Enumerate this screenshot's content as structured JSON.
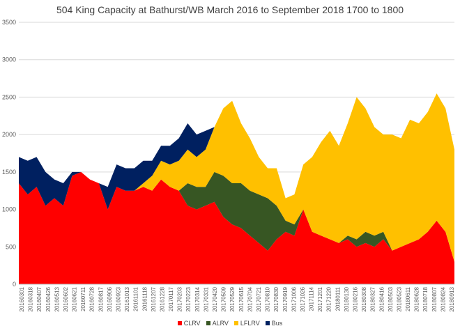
{
  "chart_data": {
    "type": "area",
    "stacked": true,
    "title": "504 King Capacity at Bathurst/WB March 2016 to September 2018  1700 to 1800",
    "xlabel": "",
    "ylabel": "",
    "ylim": [
      0,
      3500
    ],
    "yticks": [
      0,
      500,
      1000,
      1500,
      2000,
      2500,
      3000,
      3500
    ],
    "grid": true,
    "legend_position": "bottom",
    "x_tick_labels": [
      "20160301",
      "20160318",
      "20160407",
      "20160426",
      "20160513",
      "20160602",
      "20160621",
      "20160711",
      "20160728",
      "20160817",
      "20160906",
      "20160923",
      "20161013",
      "20161101",
      "20161118",
      "20161207",
      "20161228",
      "20170117",
      "20170203",
      "20170223",
      "20170314",
      "20170331",
      "20170420",
      "20170509",
      "20170529",
      "20170615",
      "20170704",
      "20170721",
      "20170810",
      "20170830",
      "20170919",
      "20171006",
      "20171026",
      "20171114",
      "20171201",
      "20171220",
      "20180111",
      "20180130",
      "20180216",
      "20180308",
      "20180327",
      "20180416",
      "20180503",
      "20180523",
      "20180611",
      "20180628",
      "20180718",
      "20180807",
      "20180824",
      "20180913"
    ],
    "series": [
      {
        "name": "CLRV",
        "color": "#ff0000",
        "values": [
          1350,
          1200,
          1300,
          1050,
          1150,
          1050,
          1450,
          1500,
          1400,
          1350,
          1000,
          1300,
          1250,
          1250,
          1300,
          1250,
          1400,
          1300,
          1250,
          1050,
          1000,
          1050,
          1100,
          900,
          800,
          750,
          650,
          550,
          450,
          600,
          700,
          650,
          1000,
          700,
          650,
          600,
          550,
          600,
          500,
          550,
          500,
          600,
          450,
          500,
          550,
          600,
          700,
          850,
          700,
          300
        ]
      },
      {
        "name": "ALRV",
        "color": "#375623",
        "values": [
          0,
          0,
          0,
          0,
          0,
          0,
          0,
          0,
          0,
          0,
          0,
          0,
          0,
          0,
          0,
          0,
          0,
          0,
          0,
          300,
          300,
          250,
          400,
          550,
          550,
          600,
          600,
          650,
          700,
          450,
          150,
          150,
          0,
          0,
          0,
          0,
          0,
          50,
          100,
          150,
          150,
          100,
          0,
          0,
          0,
          0,
          0,
          0,
          0,
          0
        ]
      },
      {
        "name": "LFLRV",
        "color": "#ffc000",
        "values": [
          0,
          0,
          0,
          0,
          0,
          0,
          0,
          0,
          0,
          0,
          0,
          0,
          0,
          0,
          50,
          200,
          250,
          300,
          400,
          450,
          400,
          500,
          600,
          900,
          1100,
          800,
          700,
          500,
          400,
          500,
          300,
          400,
          600,
          1000,
          1250,
          1450,
          1300,
          1500,
          1900,
          1650,
          1450,
          1300,
          1550,
          1450,
          1650,
          1550,
          1600,
          1700,
          1650,
          1500
        ]
      },
      {
        "name": "Bus",
        "color": "#002060",
        "values": [
          350,
          450,
          400,
          450,
          250,
          300,
          50,
          0,
          0,
          0,
          300,
          300,
          300,
          300,
          300,
          200,
          200,
          250,
          300,
          350,
          300,
          250,
          0,
          0,
          0,
          0,
          0,
          0,
          0,
          0,
          0,
          0,
          0,
          0,
          0,
          0,
          0,
          0,
          0,
          0,
          0,
          0,
          0,
          0,
          0,
          0,
          0,
          0,
          0,
          0
        ]
      }
    ]
  }
}
